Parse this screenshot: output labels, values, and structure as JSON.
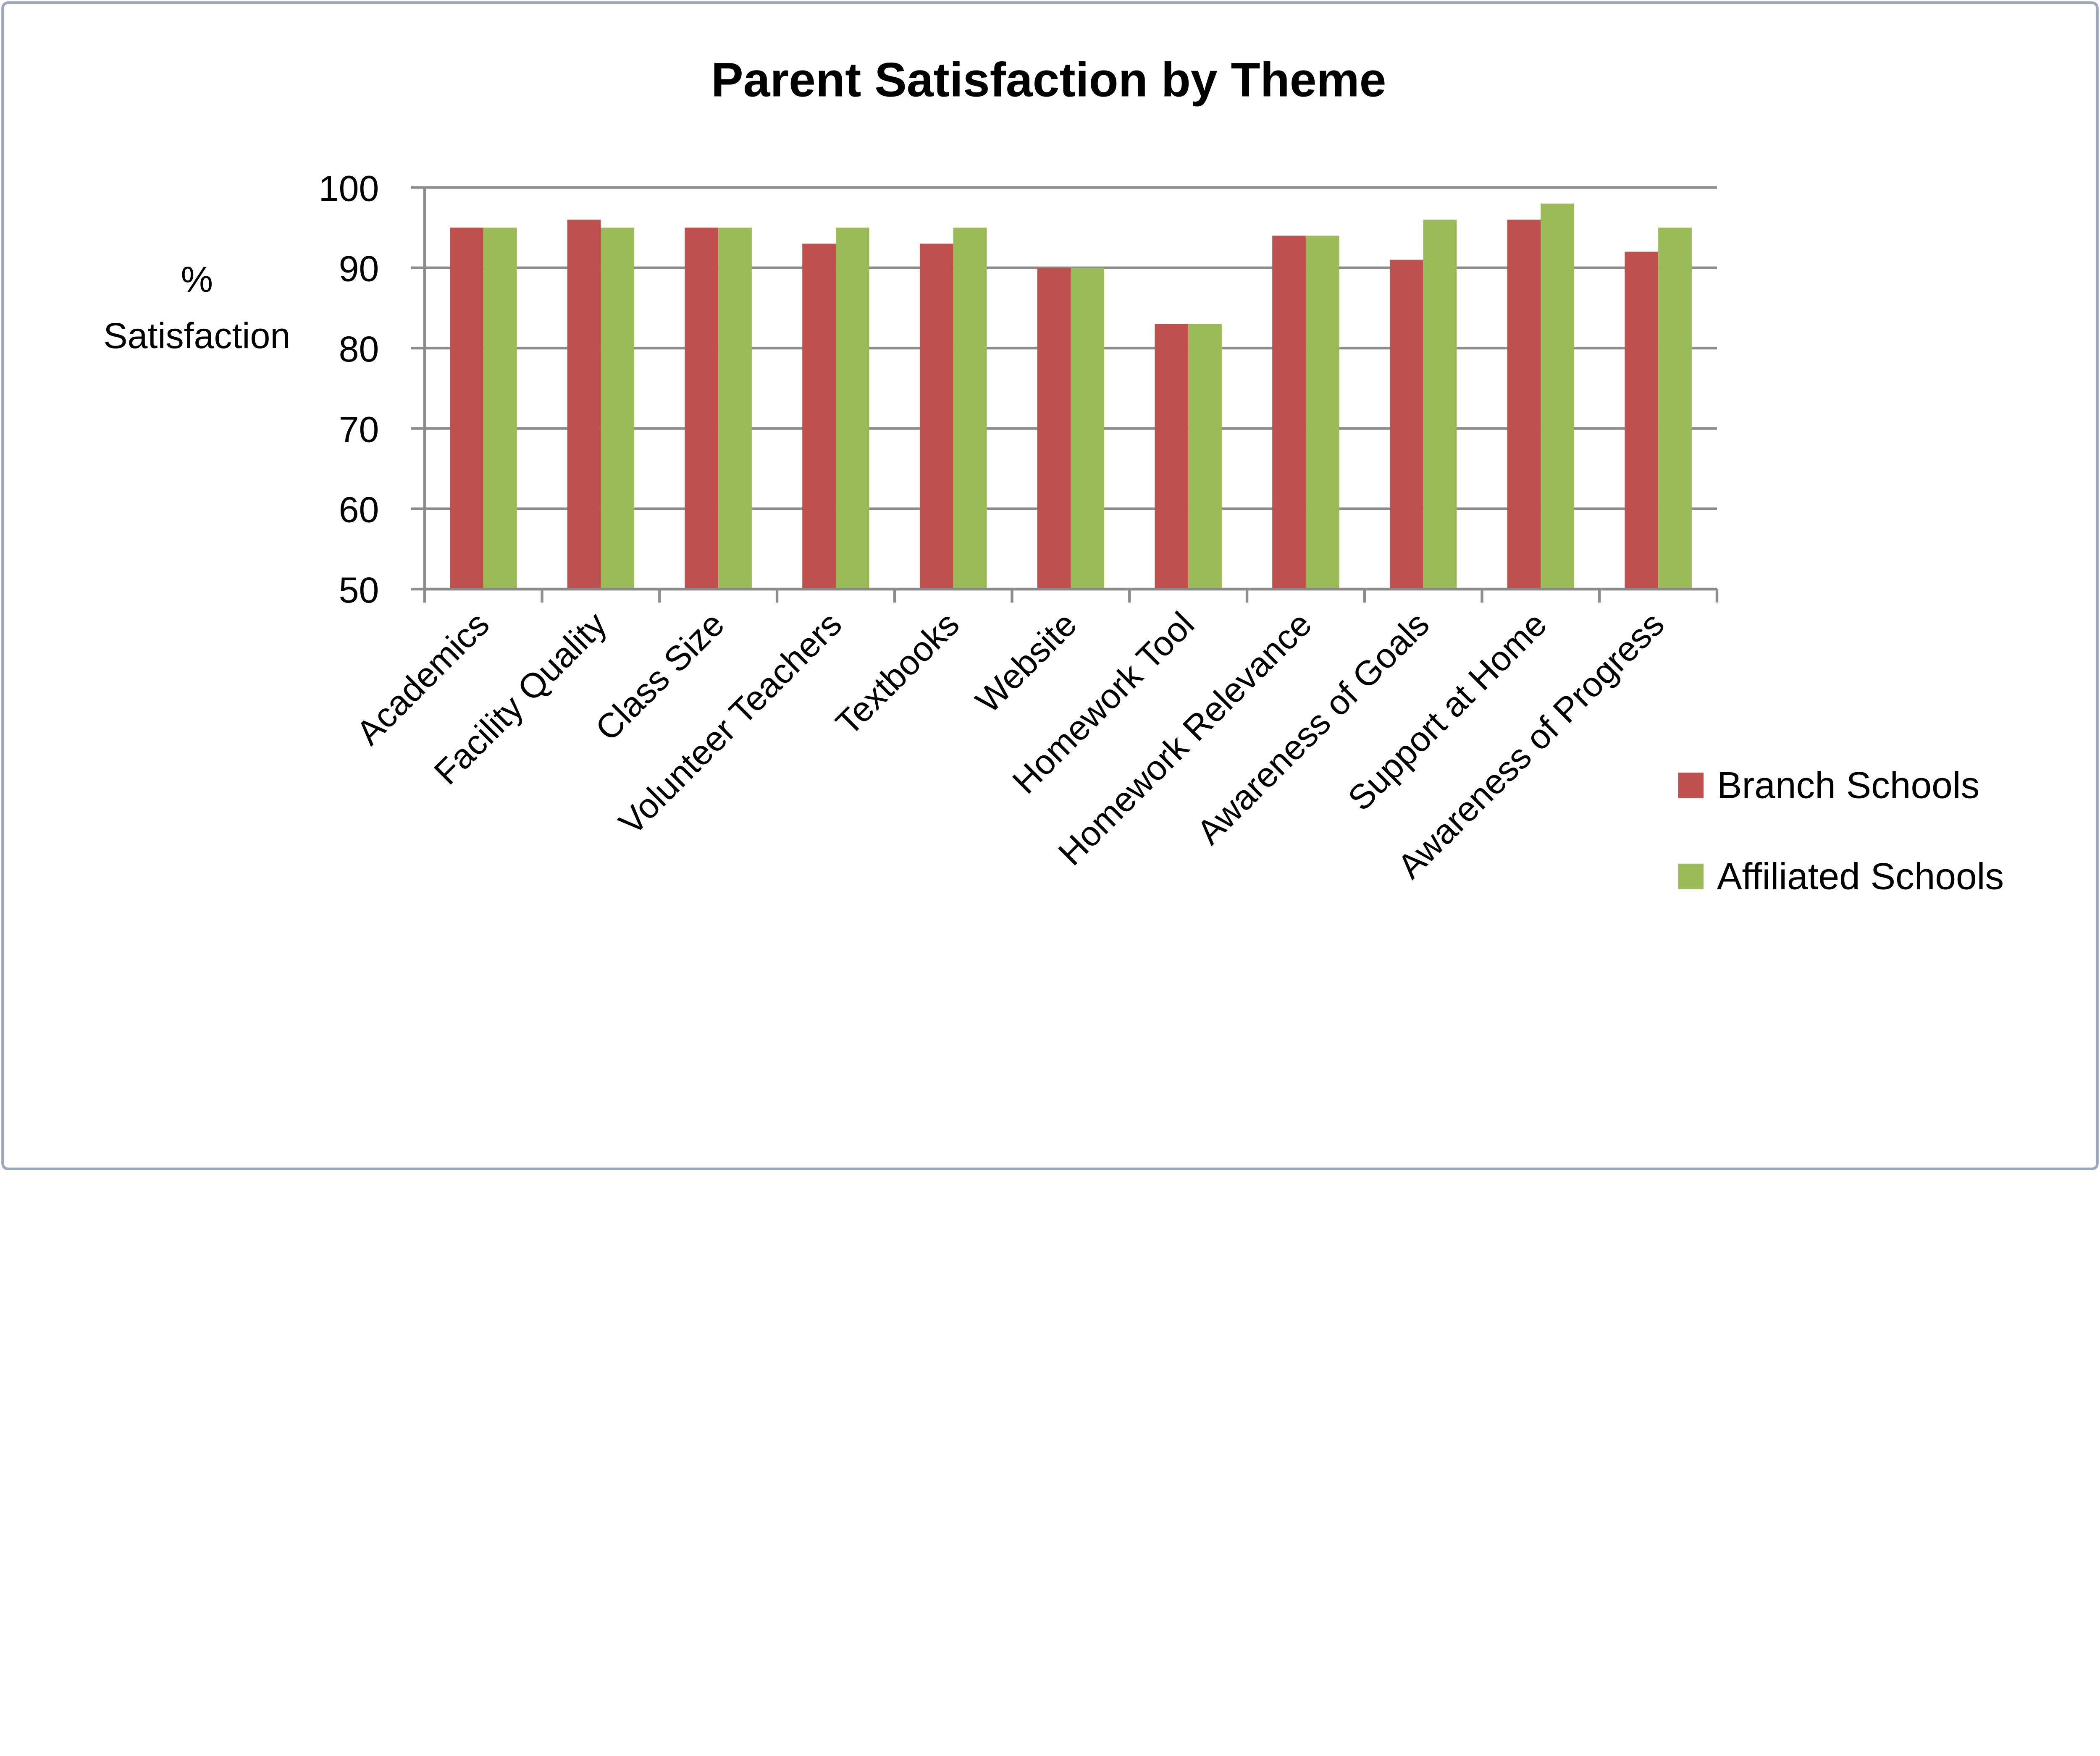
{
  "chart_data": {
    "type": "bar",
    "title": "Parent Satisfaction by Theme",
    "xlabel": "",
    "ylabel": [
      "%",
      "Satisfaction"
    ],
    "ylim": [
      50,
      100
    ],
    "yticks": [
      "50",
      "60",
      "70",
      "80",
      "90",
      "100"
    ],
    "grid": true,
    "legend_position": "right",
    "categories": [
      "Academics",
      "Facility Quality",
      "Class Size",
      "Volunteer Teachers",
      "Textbooks",
      "Website",
      "Homework Tool",
      "Homework Relevance",
      "Awareness of Goals",
      "Support at Home",
      "Awareness of Progress"
    ],
    "series": [
      {
        "name": "Branch Schools",
        "color": "#c0504d",
        "values": [
          95,
          96,
          95,
          93,
          93,
          90,
          83,
          94,
          91,
          96,
          92
        ]
      },
      {
        "name": "Affiliated Schools",
        "color": "#9bbb59",
        "values": [
          95,
          95,
          95,
          95,
          95,
          90,
          83,
          94,
          96,
          98,
          95
        ]
      }
    ]
  }
}
